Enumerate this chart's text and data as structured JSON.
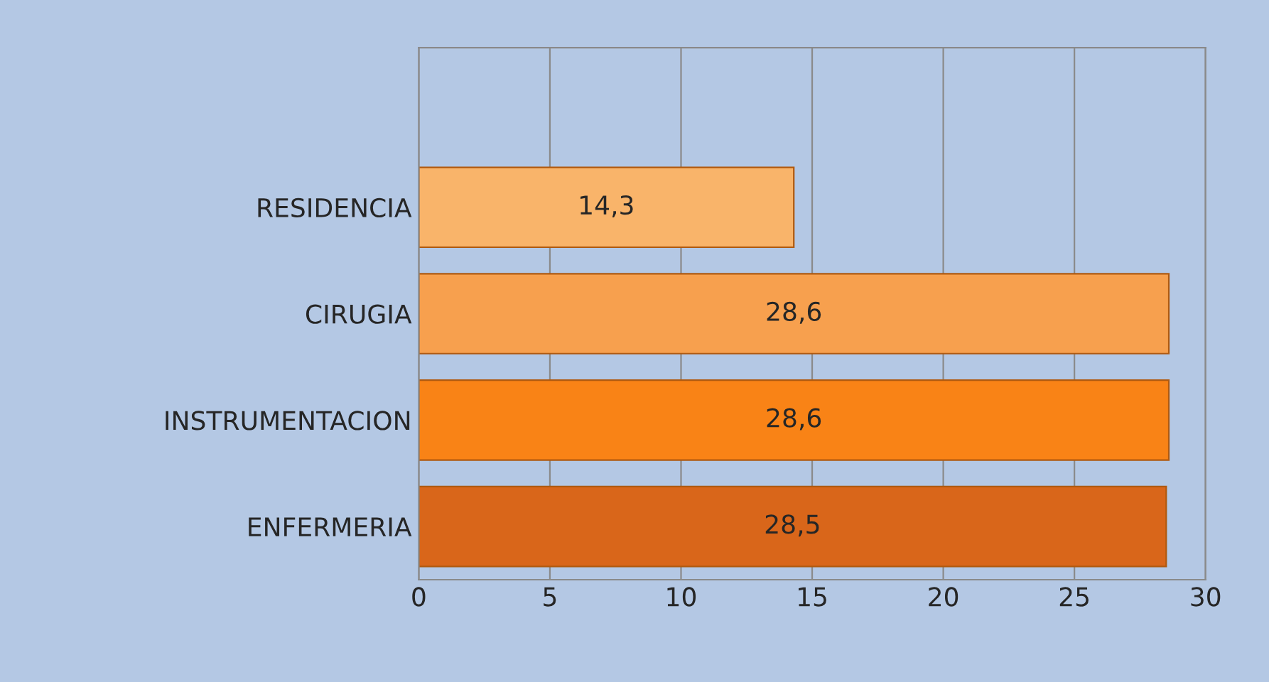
{
  "chart_data": {
    "type": "bar",
    "orientation": "horizontal",
    "categories": [
      null,
      "RESIDENCIA",
      "CIRUGIA",
      "INSTRUMENTACION",
      "ENFERMERIA"
    ],
    "values": [
      null,
      14.3,
      28.6,
      28.6,
      28.5
    ],
    "value_labels": [
      null,
      "14,3",
      "28,6",
      "28,6",
      "28,5"
    ],
    "colors": [
      "#f9b46a",
      "#f9b46a",
      "#f7a04e",
      "#f98316",
      "#d9661a"
    ],
    "xlim": [
      0,
      30
    ],
    "xticks": [
      0,
      5,
      10,
      15,
      20,
      25,
      30
    ],
    "grid": "x",
    "legend": false
  }
}
